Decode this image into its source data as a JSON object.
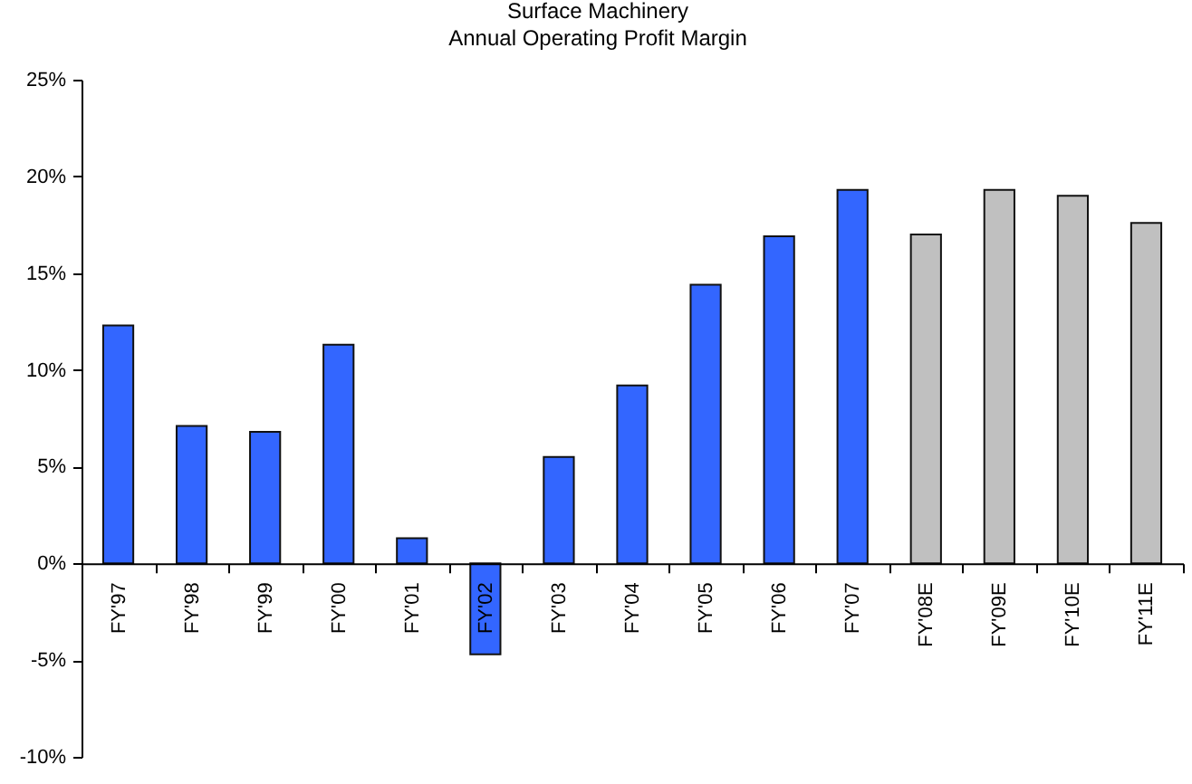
{
  "chart_data": {
    "type": "bar",
    "title": "Surface Machinery",
    "subtitle": "Annual Operating Profit Margin",
    "categories": [
      "FY'97",
      "FY'98",
      "FY'99",
      "FY'00",
      "FY'01",
      "FY'02",
      "FY'03",
      "FY'04",
      "FY'05",
      "FY'06",
      "FY'07",
      "FY'08E",
      "FY'09E",
      "FY'10E",
      "FY'11E"
    ],
    "values": [
      12.3,
      7.1,
      6.8,
      11.3,
      1.3,
      -4.7,
      5.5,
      9.2,
      14.4,
      16.9,
      19.3,
      17.0,
      19.3,
      19.0,
      17.6
    ],
    "colors": [
      "#3366ff",
      "#3366ff",
      "#3366ff",
      "#3366ff",
      "#3366ff",
      "#3366ff",
      "#3366ff",
      "#3366ff",
      "#3366ff",
      "#3366ff",
      "#3366ff",
      "#c0c0c0",
      "#c0c0c0",
      "#c0c0c0",
      "#c0c0c0"
    ],
    "ylim": [
      -10,
      25
    ],
    "yticks": [
      {
        "value": -10,
        "label": "-10%"
      },
      {
        "value": -5,
        "label": "-5%"
      },
      {
        "value": 0,
        "label": "0%"
      },
      {
        "value": 5,
        "label": "5%"
      },
      {
        "value": 10,
        "label": "10%"
      },
      {
        "value": 15,
        "label": "15%"
      },
      {
        "value": 20,
        "label": "20%"
      },
      {
        "value": 25,
        "label": "25%"
      }
    ],
    "grid": false
  }
}
